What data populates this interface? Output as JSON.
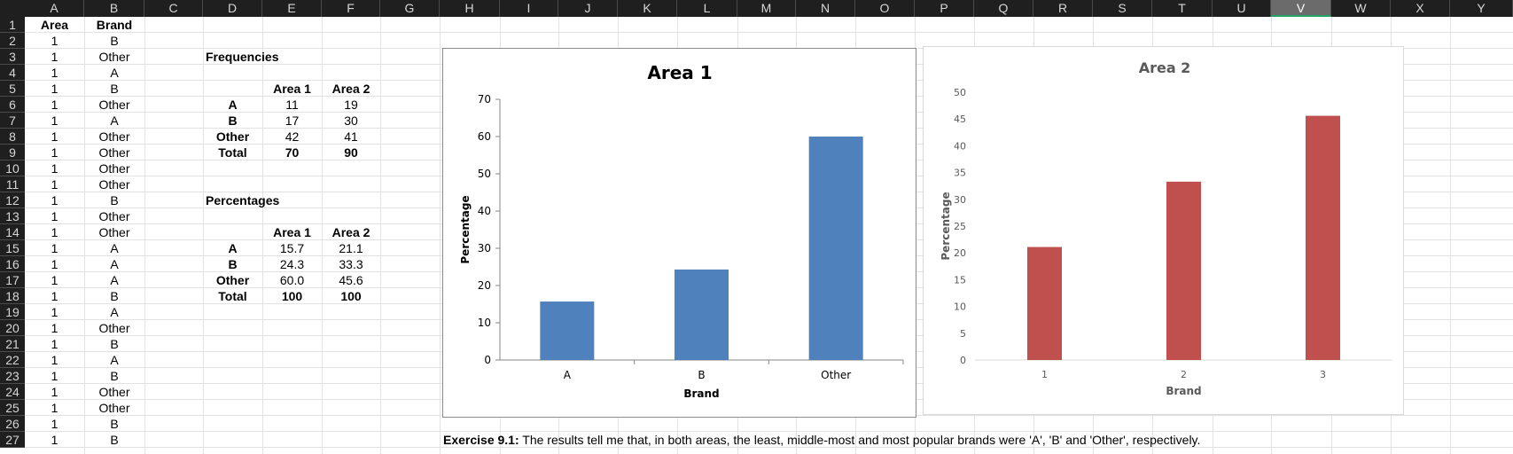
{
  "columns": [
    "A",
    "B",
    "C",
    "D",
    "E",
    "F",
    "G",
    "H",
    "I",
    "J",
    "K",
    "L",
    "M",
    "N",
    "O",
    "P",
    "Q",
    "R",
    "S",
    "T",
    "U",
    "V",
    "W",
    "X",
    "Y"
  ],
  "selected_column": "V",
  "rows": [
    "1",
    "2",
    "3",
    "4",
    "5",
    "6",
    "7",
    "8",
    "9",
    "10",
    "11",
    "12",
    "13",
    "14",
    "15",
    "16",
    "17",
    "18",
    "19",
    "20",
    "21",
    "22",
    "23",
    "24",
    "25",
    "26",
    "27"
  ],
  "data_headers": {
    "area": "Area",
    "brand": "Brand"
  },
  "data_rows": [
    {
      "area": "1",
      "brand": "B"
    },
    {
      "area": "1",
      "brand": "Other"
    },
    {
      "area": "1",
      "brand": "A"
    },
    {
      "area": "1",
      "brand": "B"
    },
    {
      "area": "1",
      "brand": "Other"
    },
    {
      "area": "1",
      "brand": "A"
    },
    {
      "area": "1",
      "brand": "Other"
    },
    {
      "area": "1",
      "brand": "Other"
    },
    {
      "area": "1",
      "brand": "Other"
    },
    {
      "area": "1",
      "brand": "Other"
    },
    {
      "area": "1",
      "brand": "B"
    },
    {
      "area": "1",
      "brand": "Other"
    },
    {
      "area": "1",
      "brand": "Other"
    },
    {
      "area": "1",
      "brand": "A"
    },
    {
      "area": "1",
      "brand": "A"
    },
    {
      "area": "1",
      "brand": "A"
    },
    {
      "area": "1",
      "brand": "B"
    },
    {
      "area": "1",
      "brand": "A"
    },
    {
      "area": "1",
      "brand": "Other"
    },
    {
      "area": "1",
      "brand": "B"
    },
    {
      "area": "1",
      "brand": "A"
    },
    {
      "area": "1",
      "brand": "B"
    },
    {
      "area": "1",
      "brand": "Other"
    },
    {
      "area": "1",
      "brand": "Other"
    },
    {
      "area": "1",
      "brand": "B"
    },
    {
      "area": "1",
      "brand": "B"
    }
  ],
  "frequencies": {
    "title": "Frequencies",
    "headers": [
      "Area 1",
      "Area 2"
    ],
    "rows": [
      {
        "label": "A",
        "v1": "11",
        "v2": "19"
      },
      {
        "label": "B",
        "v1": "17",
        "v2": "30"
      },
      {
        "label": "Other",
        "v1": "42",
        "v2": "41"
      },
      {
        "label": "Total",
        "v1": "70",
        "v2": "90"
      }
    ]
  },
  "percentages": {
    "title": "Percentages",
    "headers": [
      "Area 1",
      "Area 2"
    ],
    "rows": [
      {
        "label": "A",
        "v1": "15.7",
        "v2": "21.1"
      },
      {
        "label": "B",
        "v1": "24.3",
        "v2": "33.3"
      },
      {
        "label": "Other",
        "v1": "60.0",
        "v2": "45.6"
      },
      {
        "label": "Total",
        "v1": "100",
        "v2": "100"
      }
    ]
  },
  "exercise": {
    "label": "Exercise 9.1:",
    "text": " The results tell me that, in both areas, the least, middle-most and most popular brands were 'A', 'B' and 'Other', respectively."
  },
  "chart_data": [
    {
      "type": "bar",
      "title": "Area 1",
      "xlabel": "Brand",
      "ylabel": "Percentage",
      "categories": [
        "A",
        "B",
        "Other"
      ],
      "values": [
        15.7,
        24.3,
        60.0
      ],
      "ylim": [
        0,
        70
      ],
      "yticks": [
        "0",
        "10",
        "20",
        "30",
        "40",
        "50",
        "60",
        "70"
      ],
      "color": "#4f81bd",
      "grid": false
    },
    {
      "type": "bar",
      "title": "Area 2",
      "xlabel": "Brand",
      "ylabel": "Percentage",
      "categories": [
        "1",
        "2",
        "3"
      ],
      "values": [
        21.1,
        33.3,
        45.6
      ],
      "ylim": [
        0,
        50
      ],
      "yticks": [
        "0",
        "5",
        "10",
        "15",
        "20",
        "25",
        "30",
        "35",
        "40",
        "45",
        "50"
      ],
      "color": "#c0504d",
      "grid": false
    }
  ]
}
